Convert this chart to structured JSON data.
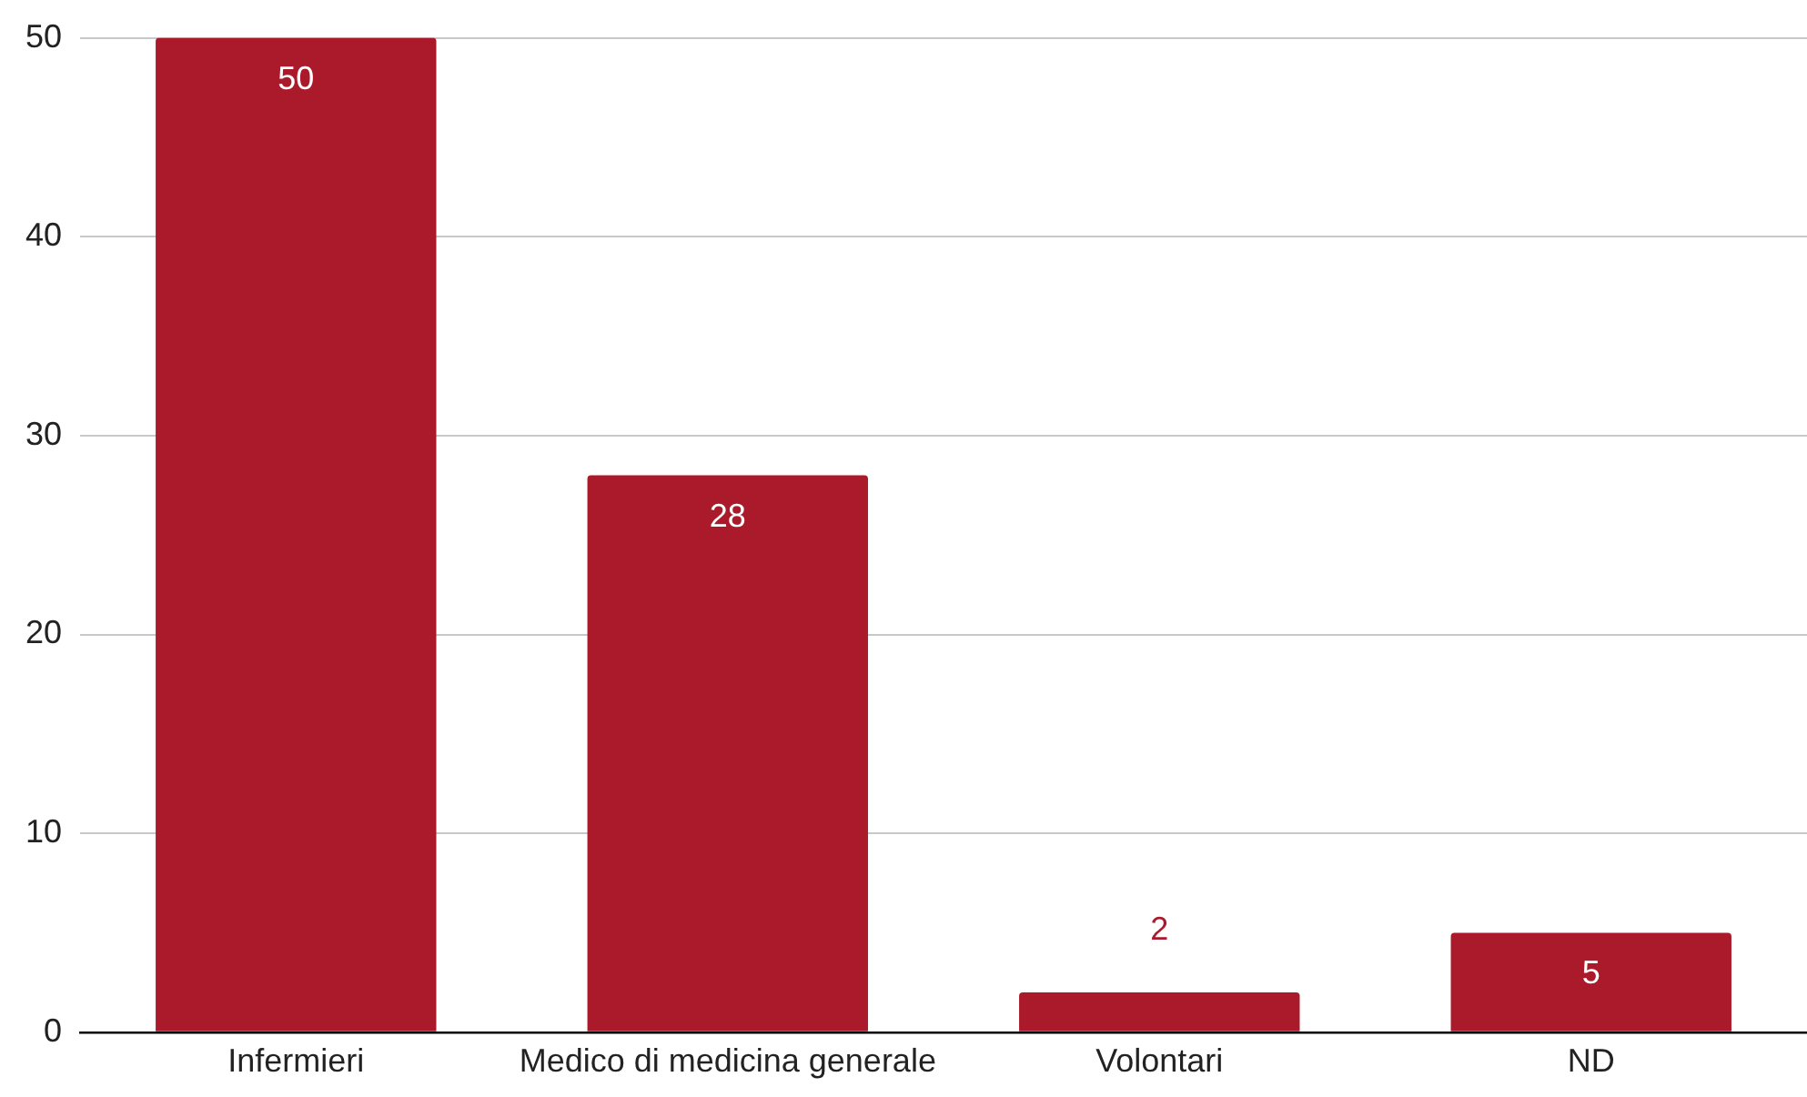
{
  "chart_data": {
    "type": "bar",
    "categories": [
      "Infermieri",
      "Medico di medicina generale",
      "Volontari",
      "ND"
    ],
    "values": [
      50,
      28,
      2,
      5
    ],
    "color": "#ab1a2b",
    "ylim": [
      0,
      50
    ],
    "yticks": [
      0,
      10,
      20,
      30,
      40,
      50
    ],
    "grid": "y",
    "data_labels": true
  }
}
